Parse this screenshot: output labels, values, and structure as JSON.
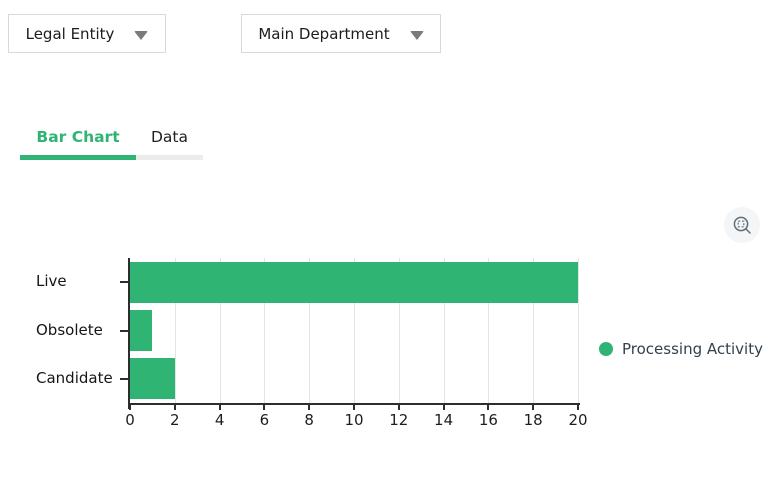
{
  "filters": {
    "legal_entity_label": "Legal Entity",
    "main_department_label": "Main Department"
  },
  "tabs": {
    "bar_chart": "Bar Chart",
    "data": "Data"
  },
  "icons": {
    "dropdown_arrow": "caret-down",
    "toolbox_zoom": "magnifier-with-selection-square"
  },
  "colors": {
    "accent_green": "#2fb473",
    "grid_line": "#e3e3e3",
    "axis_line": "#2d2d2d",
    "inactive_tab_underline": "#ececec",
    "legend_text": "#33404d",
    "toolbox_bg": "#f3f5f6"
  },
  "chart_data": {
    "type": "bar",
    "orientation": "horizontal",
    "title": "",
    "categories": [
      "Live",
      "Obsolete",
      "Candidate"
    ],
    "series": [
      {
        "name": "Processing Activity",
        "values": [
          20,
          1,
          2
        ],
        "color": "#2fb473"
      }
    ],
    "xlabel": "",
    "ylabel": "",
    "xlim": [
      0,
      20
    ],
    "x_ticks": [
      0,
      2,
      4,
      6,
      8,
      10,
      12,
      14,
      16,
      18,
      20
    ],
    "grid": true,
    "legend": {
      "position": "right",
      "entries": [
        "Processing Activity"
      ]
    }
  }
}
